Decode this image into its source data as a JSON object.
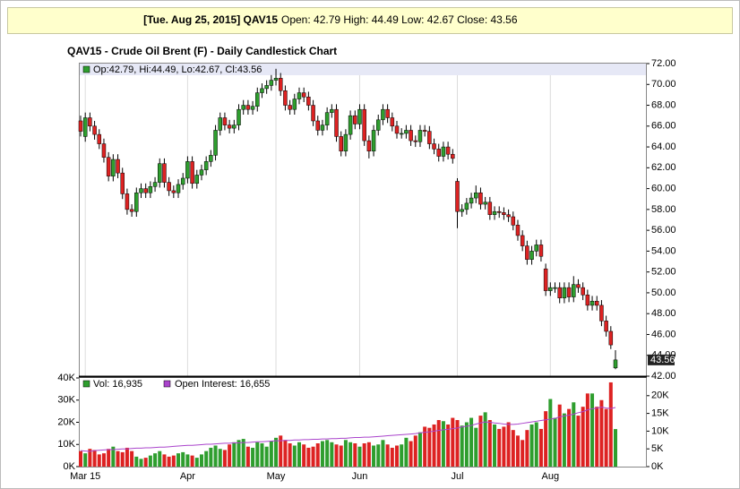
{
  "header": {
    "symbol": "[Tue. Aug 25, 2015] QAV15",
    "quote": "Open: 42.79 High: 44.49 Low: 42.67 Close: 43.56"
  },
  "chart_data": [
    {
      "type": "candlestick",
      "title": "QAV15 - Crude Oil Brent (F) - Daily Candlestick Chart",
      "legend": "Op:42.79, Hi:44.49, Lo:42.67, Cl:43.56",
      "last_label": "43.56",
      "up_color": "#2e9e2e",
      "down_color": "#dd2222",
      "ylim": [
        42,
        72
      ],
      "yticks": [
        {
          "value": 42,
          "label": "42.00"
        },
        {
          "value": 44,
          "label": "44.00"
        },
        {
          "value": 46,
          "label": "46.00"
        },
        {
          "value": 48,
          "label": "48.00"
        },
        {
          "value": 50,
          "label": "50.00"
        },
        {
          "value": 52,
          "label": "52.00"
        },
        {
          "value": 54,
          "label": "54.00"
        },
        {
          "value": 56,
          "label": "56.00"
        },
        {
          "value": 58,
          "label": "58.00"
        },
        {
          "value": 60,
          "label": "60.00"
        },
        {
          "value": 62,
          "label": "62.00"
        },
        {
          "value": 64,
          "label": "64.00"
        },
        {
          "value": 66,
          "label": "66.00"
        },
        {
          "value": 68,
          "label": "68.00"
        },
        {
          "value": 70,
          "label": "70.00"
        },
        {
          "value": 72,
          "label": "72.00"
        }
      ],
      "open": [
        66.5,
        65.0,
        66.8,
        66.0,
        65.2,
        64.3,
        63.0,
        61.2,
        62.8,
        61.5,
        59.5,
        58.0,
        57.8,
        59.6,
        60.0,
        59.6,
        60.2,
        60.6,
        62.4,
        60.6,
        59.8,
        59.6,
        60.4,
        61.0,
        62.6,
        60.5,
        61.3,
        61.8,
        62.6,
        63.2,
        65.6,
        66.8,
        66.1,
        65.8,
        66.1,
        67.6,
        68.0,
        67.6,
        67.9,
        69.2,
        69.6,
        69.9,
        70.4,
        70.6,
        69.4,
        68.0,
        67.6,
        68.6,
        69.2,
        68.8,
        68.0,
        66.5,
        65.6,
        66.1,
        67.3,
        67.6,
        65.0,
        63.6,
        65.2,
        67.0,
        66.2,
        67.6,
        64.6,
        63.6,
        65.6,
        66.6,
        67.6,
        66.8,
        66.0,
        65.3,
        65.3,
        65.6,
        64.6,
        64.5,
        65.6,
        65.5,
        64.3,
        63.8,
        63.1,
        64.0,
        63.3,
        60.7,
        57.8,
        58.0,
        58.6,
        59.1,
        59.6,
        58.5,
        58.7,
        57.5,
        57.8,
        57.7,
        57.5,
        57.3,
        56.5,
        55.5,
        54.5,
        53.2,
        54.0,
        54.6,
        52.3,
        50.2,
        50.5,
        50.5,
        49.5,
        50.5,
        49.6,
        50.8,
        50.5,
        49.8,
        48.8,
        49.2,
        48.8,
        47.3,
        46.3,
        42.79
      ],
      "high": [
        67.0,
        67.3,
        67.3,
        66.5,
        65.7,
        64.8,
        63.5,
        63.3,
        63.3,
        62.0,
        60.0,
        58.5,
        60.1,
        60.5,
        60.5,
        60.7,
        61.1,
        62.9,
        62.9,
        61.1,
        60.3,
        60.9,
        61.5,
        63.1,
        63.1,
        61.8,
        62.3,
        63.1,
        63.7,
        66.1,
        67.3,
        67.3,
        66.6,
        66.6,
        68.1,
        68.5,
        68.5,
        68.4,
        69.7,
        70.1,
        70.4,
        70.9,
        71.5,
        71.1,
        69.9,
        68.5,
        69.1,
        69.7,
        69.7,
        69.3,
        68.5,
        67.0,
        66.6,
        67.8,
        68.1,
        68.1,
        65.5,
        65.7,
        67.5,
        67.5,
        68.1,
        68.1,
        65.1,
        66.1,
        67.1,
        68.1,
        68.1,
        67.3,
        66.5,
        65.8,
        66.1,
        66.1,
        65.1,
        66.1,
        66.1,
        66.0,
        64.8,
        64.3,
        64.5,
        64.5,
        63.8,
        61.0,
        58.5,
        59.1,
        59.6,
        60.3,
        60.1,
        59.2,
        59.2,
        58.3,
        58.3,
        58.2,
        58.0,
        57.8,
        57.0,
        56.0,
        55.0,
        54.5,
        55.1,
        55.1,
        52.8,
        51.0,
        51.0,
        51.0,
        51.0,
        51.0,
        51.6,
        51.3,
        51.0,
        50.3,
        49.7,
        49.7,
        49.3,
        47.8,
        46.8,
        44.49
      ],
      "low": [
        65.0,
        64.5,
        65.5,
        64.7,
        63.8,
        62.5,
        60.7,
        60.7,
        61.0,
        59.0,
        57.5,
        57.3,
        57.3,
        59.1,
        59.1,
        59.1,
        59.7,
        60.1,
        60.1,
        59.3,
        59.1,
        59.1,
        59.9,
        60.5,
        60.0,
        60.0,
        60.8,
        61.3,
        62.1,
        62.7,
        65.1,
        65.6,
        65.3,
        65.3,
        65.6,
        67.1,
        67.1,
        67.1,
        67.4,
        68.7,
        69.1,
        69.4,
        69.9,
        68.9,
        67.5,
        67.1,
        67.1,
        68.1,
        68.3,
        67.5,
        66.0,
        65.1,
        65.1,
        65.6,
        66.8,
        64.5,
        63.1,
        63.1,
        64.7,
        65.7,
        65.7,
        64.1,
        62.9,
        63.1,
        65.1,
        66.1,
        66.3,
        65.5,
        64.8,
        64.8,
        64.8,
        64.1,
        64.0,
        64.0,
        65.0,
        63.8,
        63.3,
        62.6,
        62.6,
        62.8,
        62.4,
        56.2,
        57.3,
        57.5,
        58.1,
        58.6,
        58.0,
        58.0,
        57.0,
        57.0,
        57.2,
        57.0,
        56.8,
        56.0,
        55.0,
        54.0,
        52.7,
        52.7,
        53.5,
        53.0,
        49.7,
        49.7,
        50.0,
        49.0,
        49.0,
        49.1,
        49.1,
        50.0,
        49.3,
        48.3,
        48.3,
        48.3,
        46.8,
        45.8,
        44.6,
        42.67
      ],
      "close": [
        65.5,
        66.8,
        66.0,
        65.2,
        64.3,
        63.0,
        61.2,
        62.8,
        61.5,
        59.5,
        58.0,
        57.8,
        59.6,
        60.0,
        59.6,
        60.2,
        60.6,
        62.4,
        60.6,
        59.8,
        59.6,
        60.4,
        61.0,
        62.6,
        60.5,
        61.3,
        61.8,
        62.6,
        63.2,
        65.6,
        66.8,
        66.1,
        65.8,
        66.1,
        67.6,
        68.0,
        67.6,
        67.9,
        69.2,
        69.6,
        69.9,
        70.4,
        70.6,
        69.4,
        68.0,
        67.6,
        68.6,
        69.2,
        68.8,
        68.0,
        66.5,
        65.6,
        66.1,
        67.3,
        67.6,
        65.0,
        63.6,
        65.2,
        67.0,
        66.2,
        67.6,
        64.6,
        63.6,
        65.6,
        66.6,
        67.6,
        66.8,
        66.0,
        65.3,
        65.3,
        65.6,
        64.6,
        64.5,
        65.6,
        65.5,
        64.3,
        63.8,
        63.1,
        64.0,
        63.3,
        62.9,
        57.8,
        58.0,
        58.6,
        59.1,
        59.6,
        58.5,
        58.7,
        57.5,
        57.8,
        57.7,
        57.5,
        57.3,
        56.5,
        55.5,
        54.5,
        53.2,
        54.0,
        54.6,
        53.5,
        50.2,
        50.5,
        50.5,
        49.5,
        50.5,
        49.6,
        50.8,
        50.5,
        49.8,
        48.8,
        49.2,
        48.8,
        47.3,
        46.3,
        45.0,
        43.56
      ]
    },
    {
      "type": "bar",
      "categories": [
        null,
        "Mar 15",
        null,
        null,
        null,
        null,
        null,
        null,
        null,
        null,
        null,
        null,
        null,
        null,
        null,
        null,
        null,
        null,
        null,
        null,
        null,
        null,
        null,
        "Apr",
        null,
        null,
        null,
        null,
        null,
        null,
        null,
        null,
        null,
        null,
        null,
        null,
        null,
        null,
        null,
        null,
        null,
        null,
        "May",
        null,
        null,
        null,
        null,
        null,
        null,
        null,
        null,
        null,
        null,
        null,
        null,
        null,
        null,
        null,
        null,
        null,
        "Jun",
        null,
        null,
        null,
        null,
        null,
        null,
        null,
        null,
        null,
        null,
        null,
        null,
        null,
        null,
        null,
        null,
        null,
        null,
        null,
        null,
        "Jul",
        null,
        null,
        null,
        null,
        null,
        null,
        null,
        null,
        null,
        null,
        null,
        null,
        null,
        null,
        null,
        null,
        null,
        null,
        null,
        "Aug",
        null,
        null,
        null,
        null,
        null,
        null,
        null,
        null,
        null,
        null,
        null,
        null,
        null,
        null
      ],
      "ylim": [
        0,
        40000
      ],
      "yticks": [
        {
          "value": 0,
          "label": "0K"
        },
        {
          "value": 10000,
          "label": "10K"
        },
        {
          "value": 20000,
          "label": "20K"
        },
        {
          "value": 30000,
          "label": "30K"
        },
        {
          "value": 40000,
          "label": "40K"
        }
      ],
      "y2lim": [
        0,
        25000
      ],
      "y2ticks": [
        {
          "value": 0,
          "label": "0K"
        },
        {
          "value": 5000,
          "label": "5K"
        },
        {
          "value": 10000,
          "label": "10K"
        },
        {
          "value": 15000,
          "label": "15K"
        },
        {
          "value": 20000,
          "label": "20K"
        }
      ],
      "series": [
        {
          "name": "Vol: 16,935",
          "color": "#2e9e2e",
          "down_color": "#dd2222",
          "values": [
            7000,
            6000,
            8000,
            7500,
            5500,
            6000,
            8000,
            9000,
            7000,
            6500,
            8500,
            7000,
            4500,
            3500,
            4000,
            5000,
            6000,
            7000,
            5500,
            4500,
            5000,
            6000,
            6500,
            5500,
            5000,
            4000,
            5500,
            7000,
            8500,
            9500,
            8000,
            7500,
            10000,
            11000,
            12000,
            12500,
            9000,
            8500,
            11000,
            10500,
            9000,
            11500,
            13000,
            14000,
            12000,
            10500,
            9500,
            11000,
            10000,
            8500,
            9000,
            10500,
            11500,
            12000,
            11000,
            10000,
            9500,
            12000,
            11000,
            10500,
            9000,
            10500,
            11000,
            9500,
            10000,
            12000,
            10000,
            8500,
            9500,
            10000,
            13000,
            11500,
            14000,
            15500,
            18000,
            17500,
            19000,
            21000,
            20500,
            19000,
            22000,
            21000,
            18500,
            20000,
            22000,
            17500,
            23000,
            24500,
            21000,
            19000,
            17000,
            18000,
            20000,
            16500,
            14000,
            12000,
            16500,
            19000,
            20000,
            17000,
            25000,
            30500,
            22000,
            28000,
            24000,
            26000,
            29000,
            23000,
            27000,
            33000,
            33000,
            27000,
            30000,
            26000,
            38000,
            16935
          ]
        },
        {
          "name": "Open Interest: 16,655",
          "type": "line",
          "axis": "y2",
          "color": "#aa44cc",
          "values": [
            4500,
            4400,
            4300,
            4500,
            4600,
            4700,
            4800,
            4800,
            4900,
            5000,
            5000,
            5100,
            5200,
            5200,
            5300,
            5300,
            5400,
            5500,
            5500,
            5600,
            5700,
            5800,
            5900,
            6000,
            6000,
            6100,
            6200,
            6300,
            6300,
            6400,
            6500,
            6600,
            6600,
            6700,
            6700,
            6800,
            6800,
            6900,
            7000,
            7000,
            7100,
            7200,
            7300,
            7300,
            7400,
            7400,
            7500,
            7500,
            7600,
            7600,
            7700,
            7700,
            7800,
            7800,
            7900,
            7900,
            8000,
            8000,
            8100,
            8200,
            8200,
            8300,
            8300,
            8400,
            8500,
            8600,
            8700,
            8800,
            8900,
            9000,
            9100,
            9200,
            9300,
            9500,
            9700,
            9800,
            10000,
            10200,
            10400,
            10500,
            10700,
            10900,
            11200,
            11400,
            11600,
            12000,
            12300,
            12600,
            12500,
            12300,
            12200,
            12000,
            11900,
            11900,
            12000,
            12200,
            12400,
            12600,
            12800,
            13000,
            13200,
            13400,
            13600,
            14000,
            14300,
            14500,
            14800,
            15200,
            15500,
            16000,
            16300,
            16500,
            16800,
            16500,
            16400,
            16655
          ]
        }
      ]
    }
  ]
}
